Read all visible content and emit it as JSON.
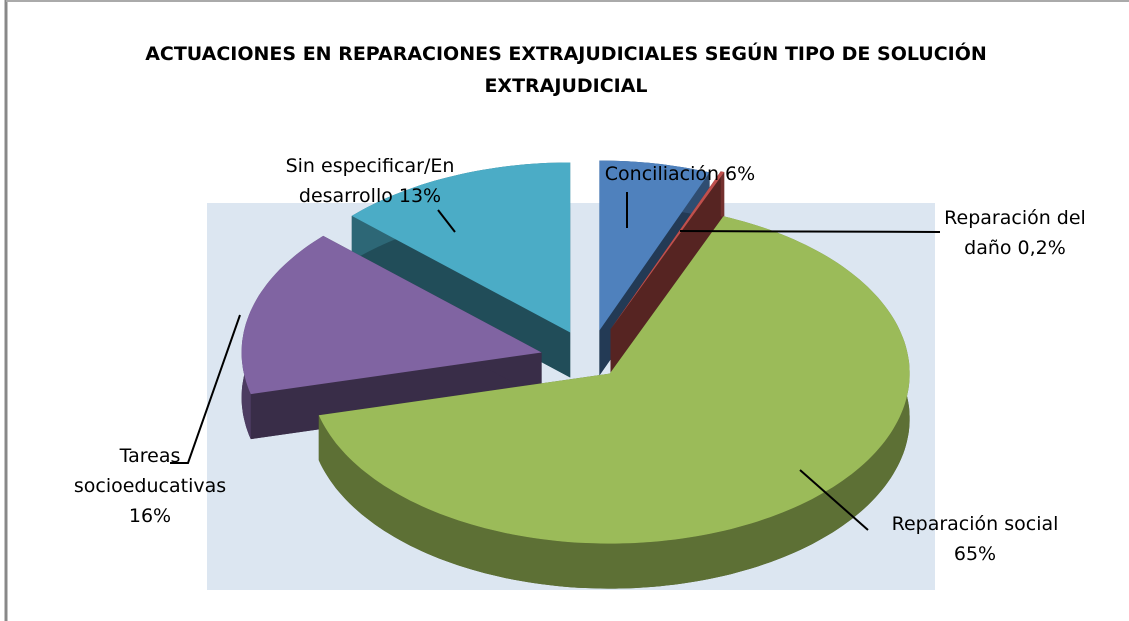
{
  "chart_data": {
    "type": "pie",
    "title": "ACTUACIONES EN REPARACIONES EXTRAJUDICIALES SEGÚN TIPO DE SOLUCIÓN EXTRAJUDICIAL",
    "categories": [
      "Conciliación",
      "Reparación del daño",
      "Reparación social",
      "Tareas socioeducativas",
      "Sin especificar/En desarrollo"
    ],
    "values": [
      6,
      0.2,
      65,
      16,
      13
    ],
    "value_labels": [
      "6%",
      "0,2%",
      "65%",
      "16%",
      "13%"
    ],
    "colors": [
      "#4f81bd",
      "#c0504d",
      "#9bbb59",
      "#8064a2",
      "#4bacc6"
    ]
  }
}
